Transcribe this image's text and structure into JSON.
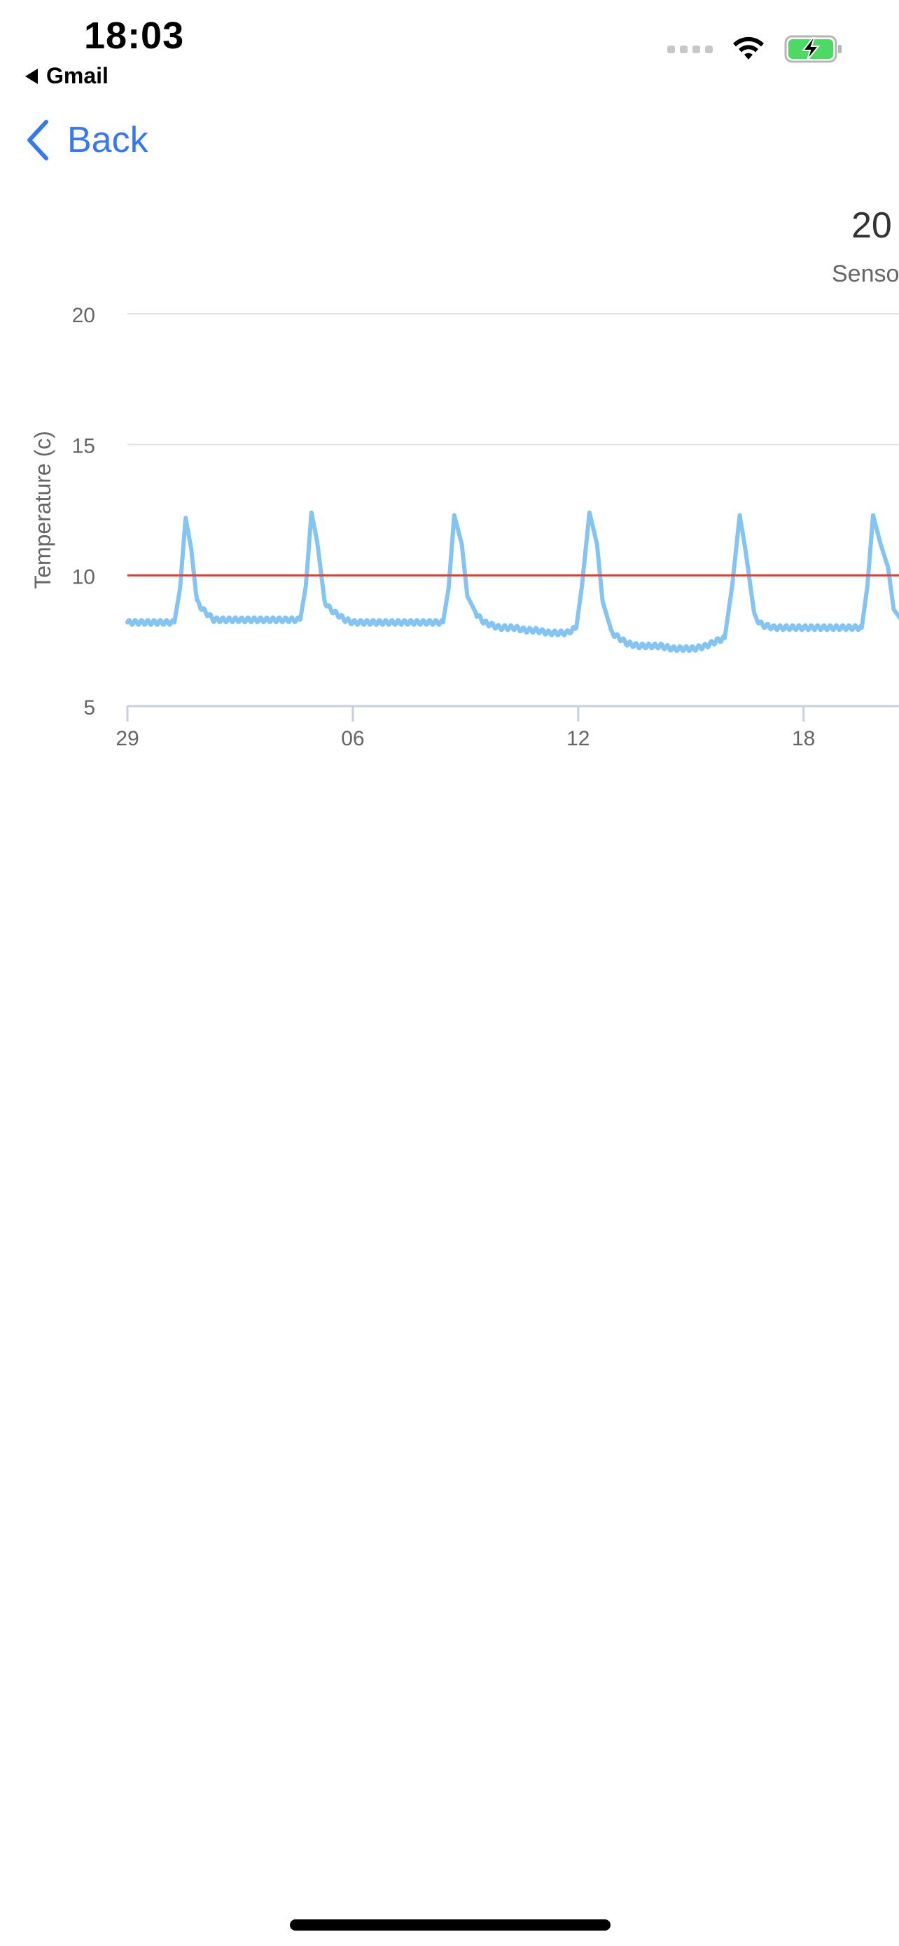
{
  "status_bar": {
    "time": "18:03",
    "back_app": "Gmail"
  },
  "nav": {
    "back_label": "Back"
  },
  "header": {
    "value": "20",
    "subtitle": "Senso"
  },
  "colors": {
    "accent": "#3478f6",
    "series": "#82c4f4",
    "threshold": "#ee3a2e",
    "grid": "#dfe3ea",
    "battery": "#4cd964"
  },
  "icons": [
    "chevron-left-icon",
    "wifi-icon",
    "battery-charging-icon",
    "cellular-signal-icon"
  ],
  "chart_data": {
    "type": "line",
    "ylabel": "Temperature (c)",
    "xlabel": "",
    "ylim": [
      5,
      20
    ],
    "yticks": [
      5,
      10,
      15,
      20
    ],
    "xticks": [
      {
        "label": "29",
        "day": 0
      },
      {
        "label": "06",
        "day": 6
      },
      {
        "label": "12",
        "day": 12
      },
      {
        "label": "18",
        "day": 18
      }
    ],
    "xlim": [
      0,
      20.6
    ],
    "grid": true,
    "threshold": 10,
    "series": [
      {
        "x": [
          0,
          0.2,
          0.4,
          0.6,
          0.8,
          1.0,
          1.2,
          1.25,
          1.4,
          1.55,
          1.7,
          1.85,
          2.0,
          2.15,
          2.3,
          2.5,
          2.7,
          2.9,
          3.1,
          3.3,
          3.5,
          3.7,
          3.9,
          4.1,
          4.3,
          4.6,
          4.75,
          4.9,
          5.05,
          5.25,
          5.4,
          5.6,
          5.8,
          6.0,
          6.2,
          6.4,
          6.6,
          6.8,
          7.0,
          7.3,
          7.6,
          7.9,
          8.2,
          8.4,
          8.55,
          8.7,
          8.9,
          9.05,
          9.3,
          9.5,
          9.7,
          9.9,
          10.1,
          10.3,
          10.6,
          10.9,
          11.2,
          11.5,
          11.7,
          11.95,
          12.1,
          12.3,
          12.5,
          12.65,
          12.9,
          13.1,
          13.3,
          13.6,
          13.9,
          14.2,
          14.5,
          14.8,
          15.1,
          15.4,
          15.7,
          15.9,
          16.1,
          16.3,
          16.45,
          16.7,
          16.9,
          17.2,
          17.5,
          17.8,
          18.1,
          18.4,
          18.7,
          19.0,
          19.3,
          19.55,
          19.7,
          19.85,
          20.05,
          20.25,
          20.4,
          20.6
        ],
        "values": [
          8.2,
          8.2,
          8.2,
          8.2,
          8.2,
          8.2,
          8.2,
          8.2,
          9.5,
          12.2,
          11.0,
          9.0,
          8.7,
          8.5,
          8.3,
          8.3,
          8.3,
          8.3,
          8.3,
          8.3,
          8.3,
          8.3,
          8.3,
          8.3,
          8.3,
          8.3,
          9.6,
          12.4,
          11.3,
          9.0,
          8.7,
          8.5,
          8.3,
          8.2,
          8.2,
          8.2,
          8.2,
          8.2,
          8.2,
          8.2,
          8.2,
          8.2,
          8.2,
          8.2,
          9.5,
          12.3,
          11.2,
          9.2,
          8.5,
          8.2,
          8.1,
          8.0,
          8.0,
          8.0,
          7.9,
          7.9,
          7.8,
          7.8,
          7.8,
          8.0,
          9.6,
          12.4,
          11.2,
          9.0,
          7.8,
          7.6,
          7.4,
          7.3,
          7.3,
          7.3,
          7.2,
          7.2,
          7.2,
          7.3,
          7.5,
          7.6,
          9.6,
          12.3,
          11.0,
          8.4,
          8.1,
          8.0,
          8.0,
          8.0,
          8.0,
          8.0,
          8.0,
          8.0,
          8.0,
          8.0,
          9.6,
          12.3,
          11.2,
          10.3,
          8.7,
          8.3
        ]
      }
    ]
  }
}
